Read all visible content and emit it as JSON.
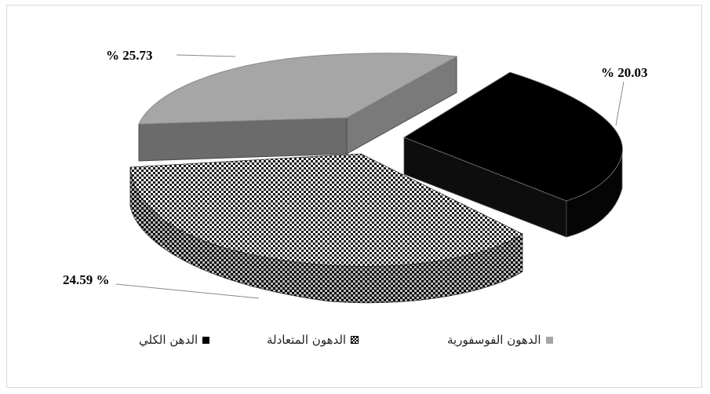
{
  "chart_data": {
    "type": "pie",
    "style": "3d-exploded",
    "title": "",
    "series": [
      {
        "name": "الدهن الكلي",
        "value": 20.03,
        "label": "% 20.03",
        "color": "#000000",
        "pattern": "solid"
      },
      {
        "name": "الدهون المتعادلة",
        "value": 24.59,
        "label": "24.59 %",
        "color": "#555555",
        "pattern": "checker"
      },
      {
        "name": "الدهون الفوسفورية",
        "value": 25.73,
        "label": "% 25.73",
        "color": "#a6a6a6",
        "pattern": "solid"
      }
    ],
    "legend_position": "bottom"
  }
}
